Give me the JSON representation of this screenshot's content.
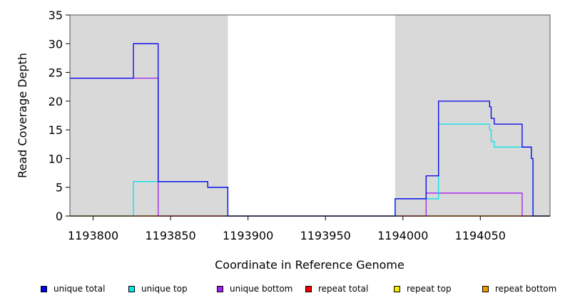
{
  "chart_data": {
    "type": "line",
    "title": "",
    "xlabel": "Coordinate in Reference Genome",
    "ylabel": "Read Coverage Depth",
    "xlim": [
      1193785,
      1194095
    ],
    "ylim": [
      0,
      35
    ],
    "xticks": [
      1193800,
      1193850,
      1193900,
      1193950,
      1194000,
      1194050
    ],
    "yticks": [
      0,
      5,
      10,
      15,
      20,
      25,
      30,
      35
    ],
    "shaded_regions": [
      {
        "x0": 1193785,
        "x1": 1193887,
        "color": "#d9d9d9"
      },
      {
        "x0": 1193995,
        "x1": 1194095,
        "color": "#d9d9d9"
      }
    ],
    "grid": false,
    "legend_position": "bottom",
    "series": [
      {
        "name": "unique total",
        "color": "#0000ee",
        "x": [
          1193785,
          1193826,
          1193826,
          1193842,
          1193842,
          1193874,
          1193874,
          1193887,
          1193887,
          1193995,
          1193995,
          1194015,
          1194015,
          1194023,
          1194023,
          1194056,
          1194056,
          1194057,
          1194057,
          1194059,
          1194059,
          1194077,
          1194077,
          1194083,
          1194083,
          1194084,
          1194084,
          1194095
        ],
        "y": [
          24,
          24,
          30,
          30,
          6,
          6,
          5,
          5,
          0,
          0,
          3,
          3,
          7,
          7,
          20,
          20,
          19,
          19,
          17,
          17,
          16,
          16,
          12,
          12,
          10,
          10,
          0,
          0
        ]
      },
      {
        "name": "unique top",
        "color": "#00e5ee",
        "x": [
          1193785,
          1193826,
          1193826,
          1193842,
          1193842,
          1193874,
          1193874,
          1193887,
          1193887,
          1193995,
          1193995,
          1194015,
          1194015,
          1194023,
          1194023,
          1194056,
          1194056,
          1194057,
          1194057,
          1194059,
          1194059,
          1194077,
          1194077,
          1194083,
          1194083,
          1194084,
          1194084,
          1194095
        ],
        "y": [
          0,
          0,
          6,
          6,
          6,
          6,
          5,
          5,
          0,
          0,
          3,
          3,
          3,
          3,
          16,
          16,
          15,
          15,
          13,
          13,
          12,
          12,
          12,
          12,
          10,
          10,
          0,
          0
        ]
      },
      {
        "name": "unique bottom",
        "color": "#a020f0",
        "x": [
          1193785,
          1193826,
          1193826,
          1193842,
          1193842,
          1194015,
          1194015,
          1194077,
          1194077,
          1194095
        ],
        "y": [
          24,
          24,
          24,
          24,
          0,
          0,
          4,
          4,
          0,
          0
        ]
      },
      {
        "name": "repeat total",
        "color": "#ee0000",
        "x": [
          1193785,
          1194095
        ],
        "y": [
          0,
          0
        ]
      },
      {
        "name": "repeat top",
        "color": "#eeee00",
        "x": [
          1193785,
          1194095
        ],
        "y": [
          0,
          0
        ]
      },
      {
        "name": "repeat bottom",
        "color": "#ee9a00",
        "x": [
          1193785,
          1194095
        ],
        "y": [
          0,
          0
        ]
      }
    ]
  }
}
